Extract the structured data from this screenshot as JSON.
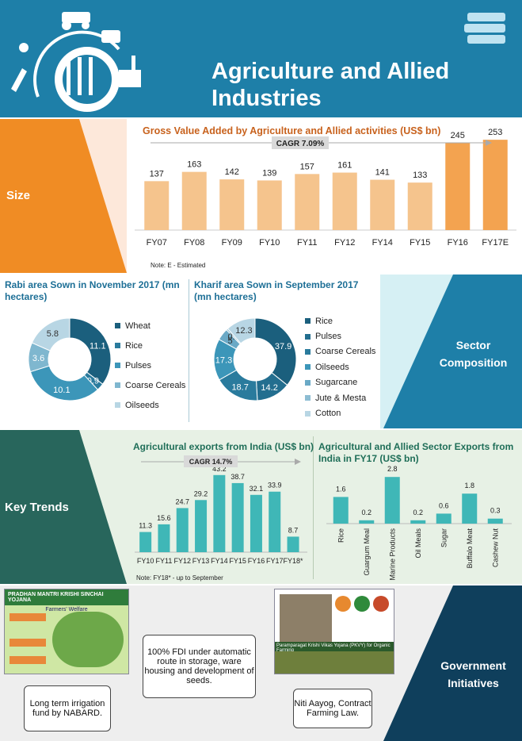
{
  "header": {
    "title": "Agriculture and Allied Industries"
  },
  "size": {
    "label": "Size",
    "chart_data": {
      "type": "bar",
      "title": "Gross Value Added by Agriculture and Allied activities (US$ bn)",
      "categories": [
        "FY07",
        "FY08",
        "FY09",
        "FY10",
        "FY11",
        "FY12",
        "FY14",
        "FY15",
        "FY16",
        "FY17E"
      ],
      "values": [
        137,
        163,
        142,
        139,
        157,
        161,
        141,
        133,
        245,
        253
      ],
      "annotation": "CAGR 7.09%",
      "note": "Note: E - Estimated",
      "colors": {
        "early": "#f5c48d",
        "late": "#f3a350"
      }
    }
  },
  "sector": {
    "label": "Sector Composition",
    "rabi": {
      "chart_data": {
        "type": "pie",
        "title": "Rabi area Sown in November 2017 (mn hectares)",
        "labels": [
          "Wheat",
          "Rice",
          "Pulses",
          "Coarse Cereals",
          "Oilseeds"
        ],
        "values": [
          11.1,
          0.9,
          10.1,
          3.6,
          5.8
        ],
        "colors": [
          "#1b5f7d",
          "#2a7b9d",
          "#3c96b9",
          "#7fb7cf",
          "#b8d6e4"
        ]
      }
    },
    "kharif": {
      "chart_data": {
        "type": "pie",
        "title": "Kharif area Sown in September 2017 (mn hectares)",
        "labels": [
          "Rice",
          "Pulses",
          "Coarse Cereals",
          "Oilseeds",
          "Sugarcane",
          "Jute & Mesta",
          "Cotton"
        ],
        "values": [
          37.9,
          14.2,
          18.7,
          17.3,
          5.0,
          0.7,
          12.3
        ],
        "colors": [
          "#1b5f7d",
          "#236e8f",
          "#2a7b9d",
          "#3c96b9",
          "#6aa9c6",
          "#8dbdd3",
          "#b8d6e4"
        ]
      }
    }
  },
  "trends": {
    "label": "Key Trends",
    "exports": {
      "chart_data": {
        "type": "bar",
        "title": "Agricultural exports from India (US$ bn)",
        "categories": [
          "FY10",
          "FY11",
          "FY12",
          "FY13",
          "FY14",
          "FY15",
          "FY16",
          "FY17",
          "FY18*"
        ],
        "values": [
          11.3,
          15.6,
          24.7,
          29.2,
          43.2,
          38.7,
          32.1,
          33.9,
          8.7
        ],
        "annotation": "CAGR 14.7%",
        "note": "Note: FY18* - up to September",
        "color": "#3fb7b7"
      }
    },
    "fy17": {
      "chart_data": {
        "type": "bar",
        "title": "Agricultural and Allied Sector Exports from India in FY17 (US$ bn)",
        "categories": [
          "Rice",
          "Guargum Meal",
          "Marine Products",
          "Oil Meals",
          "Sugar",
          "Buffalo Meat",
          "Cashew Nut"
        ],
        "values": [
          1.6,
          0.2,
          2.8,
          0.2,
          0.6,
          1.8,
          0.3
        ],
        "color": "#3fb7b7"
      }
    }
  },
  "gov": {
    "label": "Government Initiatives",
    "pmksy_title": "PRADHAN MANTRI KRISHI SINCHAI YOJANA",
    "pmksy_subtitle": "Farmers' Welfare",
    "pkvy_caption": "Paramparagat Krishi Vikas Yojana (PKVY) for Organic Farming",
    "box1": "Long term irrigation fund by NABARD.",
    "box2": "100% FDI under automatic route in storage, ware housing and development of seeds.",
    "box3": "Niti Aayog, Contract Farming Law."
  }
}
